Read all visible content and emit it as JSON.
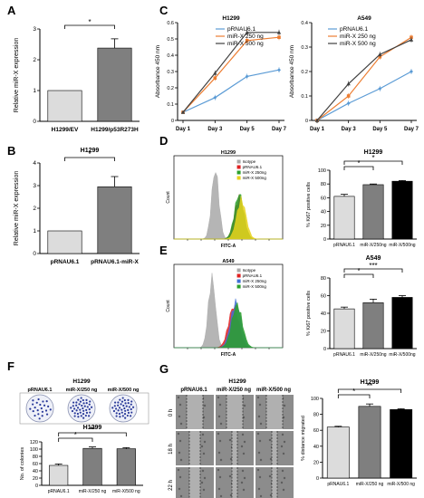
{
  "panel_letters": [
    "A",
    "B",
    "C",
    "D",
    "E",
    "F",
    "G"
  ],
  "sig": {
    "one": "*",
    "two": "**",
    "three": "***"
  },
  "colors": {
    "light_gray": "#dcdcdc",
    "mid_gray": "#7f7f7f",
    "dark_gray": "#3c3c3c",
    "black": "#000000",
    "blue": "#5b9bd5",
    "orange": "#ed7d31",
    "dark": "#404040",
    "hist_gray": "#a8a8a8",
    "hist_red": "#e02020",
    "hist_green": "#2ca02c",
    "hist_yellow": "#e8d21c",
    "hist_blue": "#3f6fd6"
  },
  "chart_data": [
    {
      "id": "A",
      "type": "bar",
      "ylabel": "Relative miR-X expression",
      "categories": [
        "H1299/EV",
        "H1299/p53R273H"
      ],
      "values": [
        1.0,
        2.38
      ],
      "errors": [
        0,
        0.3
      ],
      "ylim": [
        0,
        3
      ],
      "yticks": [
        0,
        1,
        2,
        3
      ],
      "sig": "*"
    },
    {
      "id": "B",
      "type": "bar",
      "title": "H1299",
      "ylabel": "Relative miR-X expression",
      "categories": [
        "pRNAU6.1",
        "pRNAU6.1-miR-X"
      ],
      "values": [
        1.0,
        2.95
      ],
      "errors": [
        0,
        0.45
      ],
      "ylim": [
        0,
        4
      ],
      "yticks": [
        0,
        1,
        2,
        3,
        4
      ],
      "sig": "*"
    },
    {
      "id": "C1",
      "type": "line",
      "title": "H1299",
      "ylabel": "Absorbance 450 nm",
      "categories": [
        "Day 1",
        "Day 3",
        "Day 5",
        "Day 7"
      ],
      "ylim": [
        0,
        0.6
      ],
      "yticks": [
        0,
        0.1,
        0.2,
        0.3,
        0.4,
        0.5,
        0.6
      ],
      "series": [
        {
          "name": "pRNAU6.1",
          "values": [
            0.05,
            0.14,
            0.27,
            0.31
          ]
        },
        {
          "name": "miR-X  250 ng",
          "values": [
            0.05,
            0.26,
            0.49,
            0.51
          ]
        },
        {
          "name": "miR-X  500 ng",
          "values": [
            0.05,
            0.29,
            0.54,
            0.54
          ]
        }
      ]
    },
    {
      "id": "C2",
      "type": "line",
      "title": "A549",
      "ylabel": "Absorbance 450 nm",
      "categories": [
        "Day 1",
        "Day 3",
        "Day 5",
        "Day 7"
      ],
      "ylim": [
        0,
        0.4
      ],
      "yticks": [
        0,
        0.1,
        0.2,
        0.3,
        0.4
      ],
      "series": [
        {
          "name": "pRNAU6.1",
          "values": [
            0.0,
            0.07,
            0.13,
            0.2
          ]
        },
        {
          "name": "miR-X 250 ng",
          "values": [
            0.0,
            0.1,
            0.26,
            0.34
          ]
        },
        {
          "name": "miR-X  500 ng",
          "values": [
            0.0,
            0.15,
            0.27,
            0.33
          ]
        }
      ]
    },
    {
      "id": "D_hist",
      "type": "area",
      "title": "H1299",
      "xlabel": "FITC-A",
      "ylabel": "Count",
      "legend": [
        "Isotype",
        "pRNAU6.1",
        "miR-X  250ng",
        "miR-X 500ng"
      ]
    },
    {
      "id": "D_bar",
      "type": "bar",
      "title": "H1299",
      "ylabel": "% Ki67 positive cells",
      "categories": [
        "pRNAU6.1",
        "miR-X/250ng",
        "miR-X/500ng"
      ],
      "values": [
        62,
        79,
        84
      ],
      "errors": [
        3,
        1,
        1
      ],
      "ylim": [
        0,
        100
      ],
      "yticks": [
        0,
        20,
        40,
        60,
        80,
        100
      ],
      "sig": [
        {
          "a": 0,
          "b": 1,
          "t": "*"
        },
        {
          "a": 0,
          "b": 2,
          "t": "*"
        }
      ]
    },
    {
      "id": "E_hist",
      "type": "area",
      "title": "A549",
      "xlabel": "FITC-A",
      "ylabel": "Count",
      "legend": [
        "Isotype",
        "pRNAU6.1",
        "miR-X  250ng",
        "miR-X  500ng"
      ]
    },
    {
      "id": "E_bar",
      "type": "bar",
      "title": "A549",
      "ylabel": "% Ki67 positive cells",
      "categories": [
        "pRNAU6.1",
        "miR-X/250ng",
        "miR-X/500ng"
      ],
      "values": [
        45,
        52,
        58
      ],
      "errors": [
        2,
        4,
        2
      ],
      "ylim": [
        0,
        80
      ],
      "yticks": [
        0,
        20,
        40,
        60,
        80
      ],
      "sig": [
        {
          "a": 0,
          "b": 1,
          "t": "*"
        },
        {
          "a": 0,
          "b": 2,
          "t": "***"
        }
      ]
    },
    {
      "id": "F_img",
      "title": "H1299",
      "labels": [
        "pRNAU6.1",
        "miR-X/250 ng",
        "miR-X/500 ng"
      ]
    },
    {
      "id": "F_bar",
      "type": "bar",
      "title": "H1299",
      "ylabel": "No. of colonies",
      "categories": [
        "pRNAU6.1",
        "miR-X/250 ng",
        "miR-X/500 ng"
      ],
      "values": [
        55,
        102,
        101
      ],
      "errors": [
        4,
        4,
        3
      ],
      "ylim": [
        0,
        120
      ],
      "yticks": [
        0,
        20,
        40,
        60,
        80,
        100,
        120
      ],
      "sig": [
        {
          "a": 0,
          "b": 1,
          "t": "*"
        },
        {
          "a": 0,
          "b": 2,
          "t": "**"
        }
      ]
    },
    {
      "id": "G_img",
      "title": "H1299",
      "labels": [
        "pRNAU6.1",
        "miR-X/250 ng",
        "miR-X/500 ng"
      ],
      "rows": [
        "0 h",
        "18 h",
        "22 h"
      ]
    },
    {
      "id": "G_bar",
      "type": "bar",
      "title": "H1299",
      "ylabel": "% distance migrated",
      "categories": [
        "pRNAU6.1",
        "miR-X/250 ng",
        "miR-X/500 ng"
      ],
      "values": [
        64,
        90,
        86
      ],
      "errors": [
        1,
        3,
        1
      ],
      "ylim": [
        0,
        100
      ],
      "yticks": [
        0,
        20,
        40,
        60,
        80,
        100
      ],
      "sig": [
        {
          "a": 0,
          "b": 1,
          "t": "*"
        },
        {
          "a": 0,
          "b": 2,
          "t": "**"
        }
      ]
    }
  ]
}
